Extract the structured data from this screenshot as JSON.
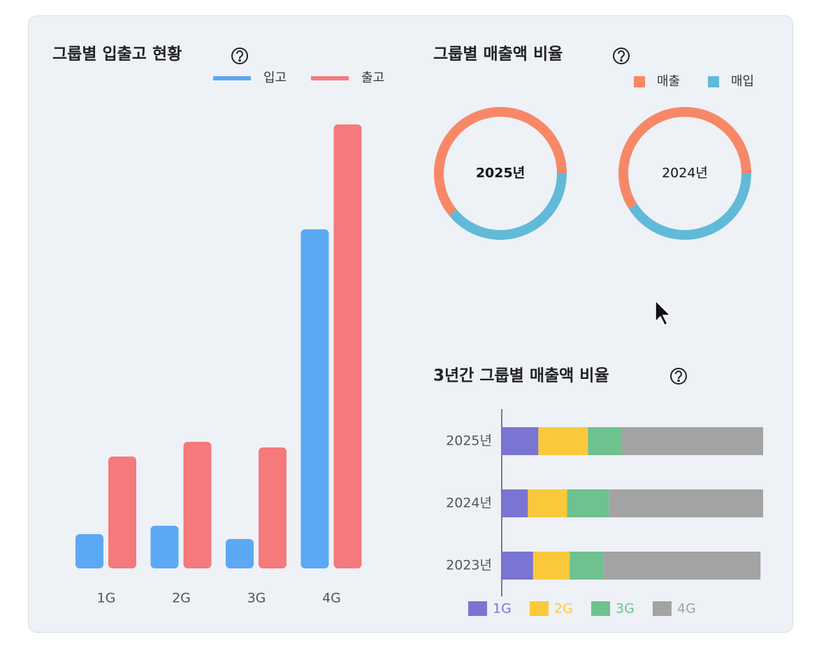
{
  "chart_data": [
    {
      "type": "bar",
      "title": "그룹별 입출고 현황",
      "categories": [
        "1G",
        "2G",
        "3G",
        "4G"
      ],
      "series": [
        {
          "name": "입고",
          "color": "#5ba9f4",
          "values": [
            49,
            61,
            42,
            485
          ]
        },
        {
          "name": "출고",
          "color": "#f47a7c",
          "values": [
            160,
            181,
            173,
            635
          ]
        }
      ]
    },
    {
      "type": "donut",
      "title": "그룹별 매출액 비율",
      "categories": [
        "2025년",
        "2024년"
      ],
      "series": [
        {
          "name": "매출",
          "color": "#f78867",
          "values": [
            61,
            59
          ]
        },
        {
          "name": "매입",
          "color": "#60bad8",
          "values": [
            39,
            41
          ]
        }
      ]
    },
    {
      "type": "stacked-hbar",
      "title": "3년간 그룹별 매출액 비율",
      "categories": [
        "2025년",
        "2024년",
        "2023년"
      ],
      "series": [
        {
          "name": "1G",
          "color": "#7a74d2",
          "values": [
            14,
            10,
            12
          ]
        },
        {
          "name": "2G",
          "color": "#f9c93b",
          "values": [
            19,
            15,
            14
          ]
        },
        {
          "name": "3G",
          "color": "#6dc28f",
          "values": [
            13,
            16,
            13
          ]
        },
        {
          "name": "4G",
          "color": "#a3a3a3",
          "values": [
            54,
            59,
            60
          ]
        }
      ]
    }
  ]
}
